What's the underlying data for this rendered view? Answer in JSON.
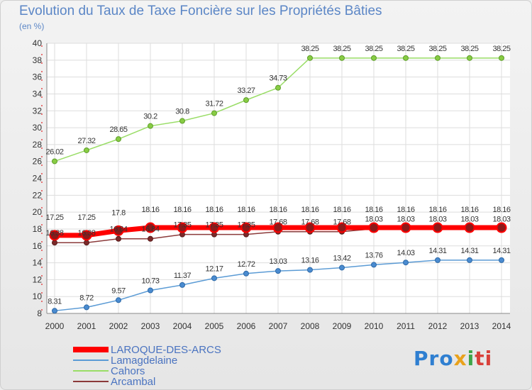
{
  "title": "Evolution du Taux de Taxe Foncière sur les Propriétés Bâties",
  "unit": "(en %)",
  "logo": {
    "part1": "Pro",
    "part2": "x",
    "part3": "i",
    "part4": "ti"
  },
  "chart_data": {
    "type": "line",
    "title": "Evolution du Taux de Taxe Foncière sur les Propriétés Bâties",
    "ylabel": "(en %)",
    "xlabel": "",
    "x": [
      "2000",
      "2001",
      "2002",
      "2003",
      "2004",
      "2005",
      "2006",
      "2007",
      "2008",
      "2009",
      "2010",
      "2011",
      "2012",
      "2013",
      "2014"
    ],
    "ylim": [
      8,
      40
    ],
    "yticks": [
      8,
      10,
      12,
      14,
      16,
      18,
      20,
      22,
      24,
      26,
      28,
      30,
      32,
      34,
      36,
      38,
      40
    ],
    "grid": true,
    "legend_position": "bottom-left",
    "series": [
      {
        "name": "LAROQUE-DES-ARCS",
        "color": "#ff0000",
        "values": [
          17.25,
          17.25,
          17.8,
          18.16,
          18.16,
          18.16,
          18.16,
          18.16,
          18.16,
          18.16,
          18.16,
          18.16,
          18.16,
          18.16,
          18.16
        ],
        "labels": [
          "17.25",
          "17.25",
          "17.8",
          "18.16",
          "18.16",
          "18.16",
          "18.16",
          "18.16",
          "18.16",
          "18.16",
          "18.16",
          "18.16",
          "18.16",
          "18.16",
          "18.16"
        ]
      },
      {
        "name": "Lamagdelaine",
        "color": "#5b9bd5",
        "values": [
          8.31,
          8.72,
          9.57,
          10.73,
          11.37,
          12.17,
          12.72,
          13.03,
          13.16,
          13.42,
          13.76,
          14.03,
          14.31,
          14.31,
          14.31
        ],
        "labels": [
          "8.31",
          "8.72",
          "9.57",
          "10.73",
          "11.37",
          "12.17",
          "12.72",
          "13.03",
          "13.16",
          "13.42",
          "13.76",
          "14.03",
          "14.31",
          "14.31",
          "14.31"
        ]
      },
      {
        "name": "Cahors",
        "color": "#99dd66",
        "values": [
          26.02,
          27.32,
          28.65,
          30.2,
          30.8,
          31.72,
          33.27,
          34.73,
          38.25,
          38.25,
          38.25,
          38.25,
          38.25,
          38.25,
          38.25
        ],
        "labels": [
          "26.02",
          "27.32",
          "28.65",
          "30.2",
          "30.8",
          "31.72",
          "33.27",
          "34.73",
          "38.25",
          "38.25",
          "38.25",
          "38.25",
          "38.25",
          "38.25",
          "38.25"
        ]
      },
      {
        "name": "Arcambal",
        "color": "#8b3a3a",
        "values": [
          16.38,
          16.38,
          16.84,
          16.84,
          17.35,
          17.35,
          17.35,
          17.68,
          17.68,
          17.68,
          18.03,
          18.03,
          18.03,
          18.03,
          18.03
        ],
        "labels": [
          "16.38",
          "16.38",
          "16.84",
          "16.84",
          "17.35",
          "17.35",
          "17.35",
          "17.68",
          "17.68",
          "17.68",
          "18.03",
          "18.03",
          "18.03",
          "18.03",
          "18.03"
        ]
      }
    ]
  }
}
